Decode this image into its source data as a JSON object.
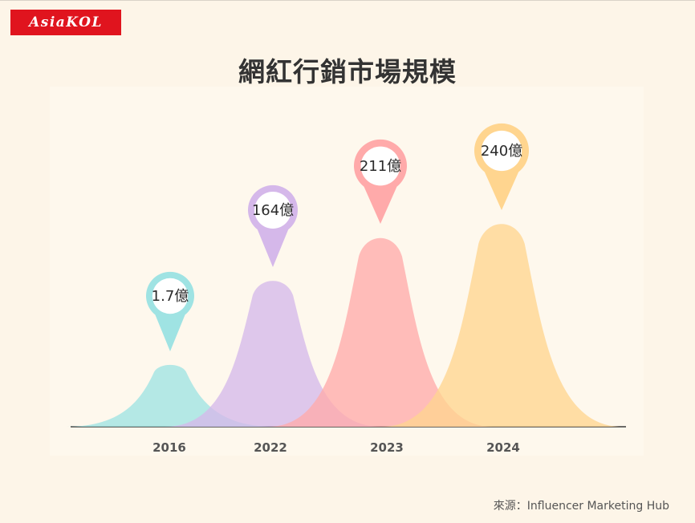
{
  "brand": {
    "logo_text": "AsiaKOL"
  },
  "chart_data": {
    "type": "area",
    "title": "網紅行銷市場規模",
    "xlabel": "",
    "ylabel": "",
    "categories": [
      "2016",
      "2022",
      "2023",
      "2024"
    ],
    "values": [
      1.7,
      164,
      211,
      240
    ],
    "data_labels": [
      "1.7億",
      "164億",
      "211億",
      "240億"
    ],
    "colors": [
      "#9fe3e3",
      "#d5b8ea",
      "#ffaaaa",
      "#ffd58f"
    ],
    "grid": false,
    "legend": "none"
  },
  "source": "來源：Influencer Marketing Hub"
}
